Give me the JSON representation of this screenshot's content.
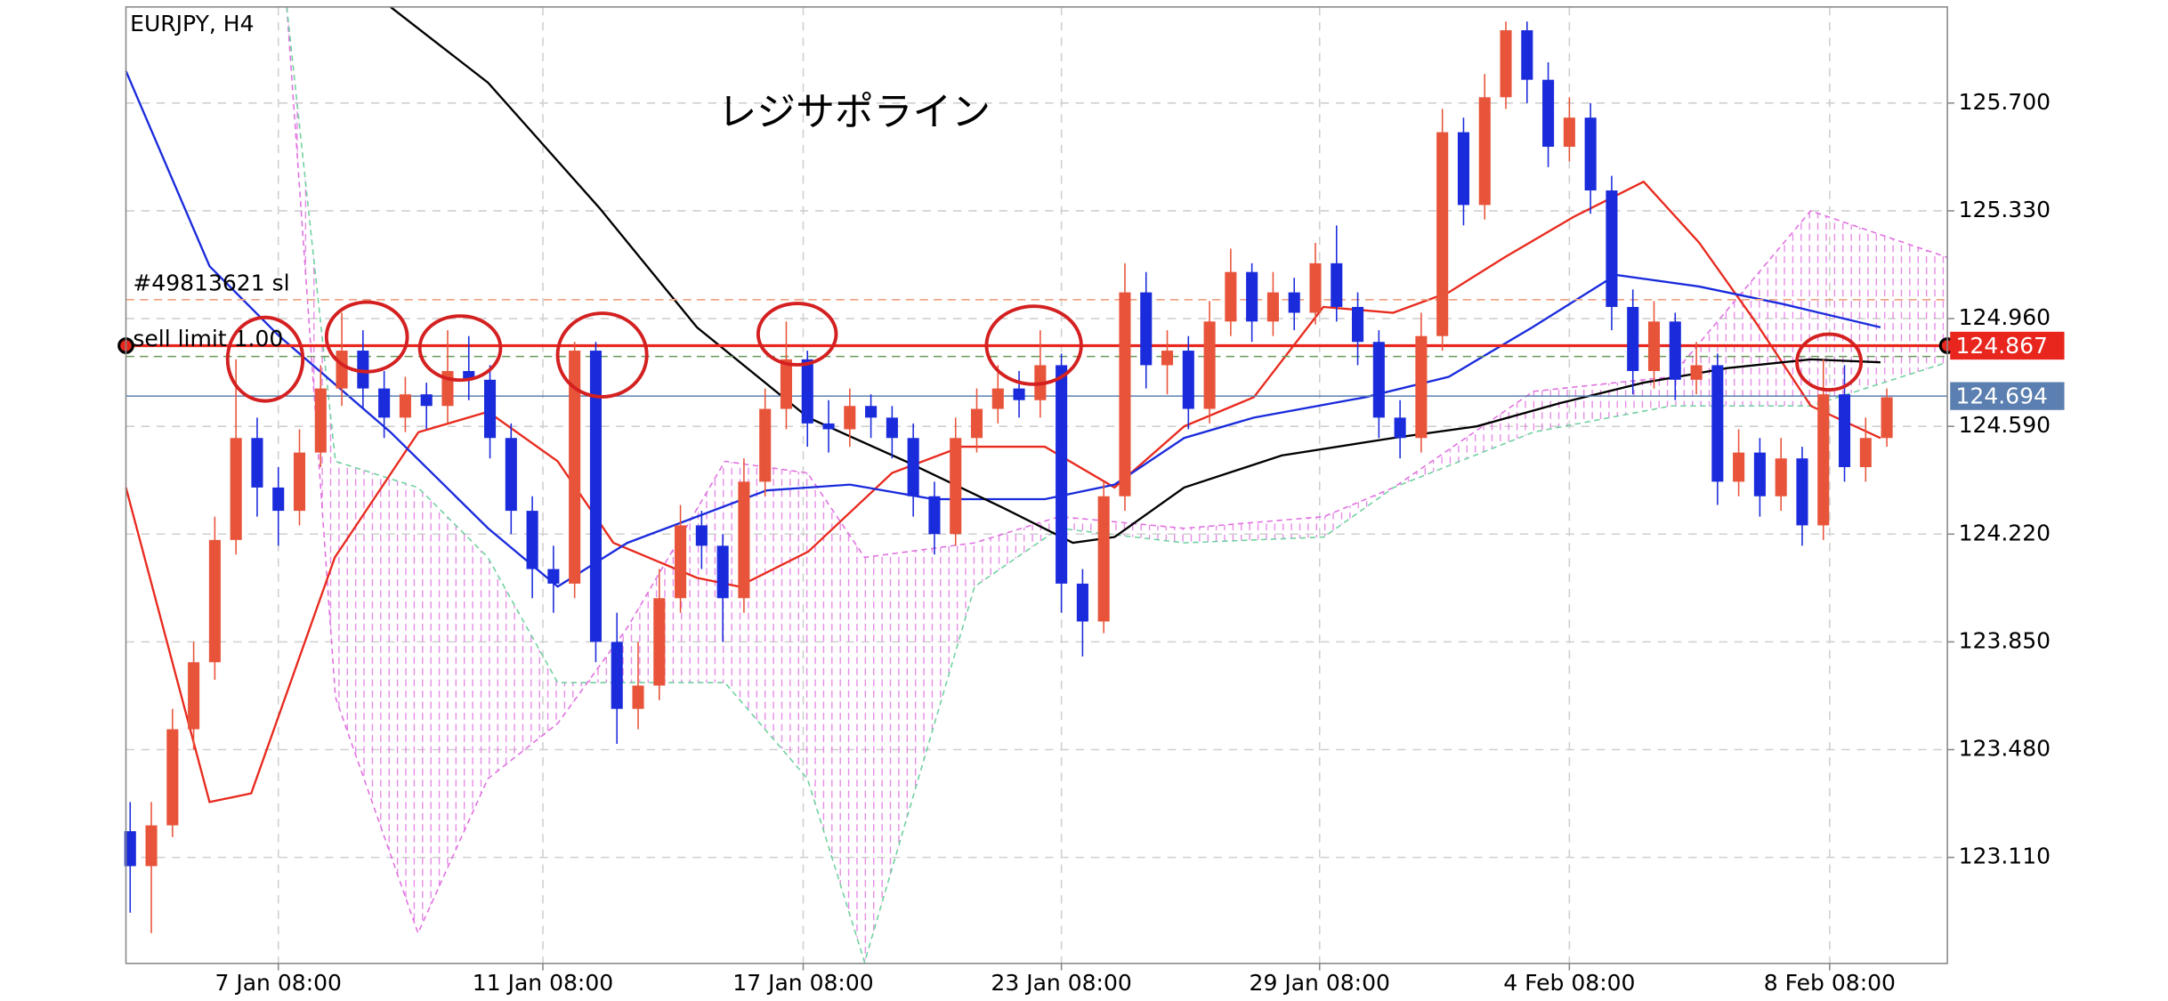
{
  "chart_data": {
    "type": "candlestick",
    "title": "EURJPY, H4",
    "annotation": "レジサポライン",
    "up_color": "#e8543a",
    "down_color": "#1a2bdc",
    "grid": true,
    "xlim": [
      -0.2,
      85.86
    ],
    "ylim": [
      122.746,
      126.03
    ],
    "yticks": [
      {
        "value": 123.11,
        "label": "123.110"
      },
      {
        "value": 123.48,
        "label": "123.480"
      },
      {
        "value": 123.85,
        "label": "123.850"
      },
      {
        "value": 124.22,
        "label": "124.220"
      },
      {
        "value": 124.59,
        "label": "124.590"
      },
      {
        "value": 124.96,
        "label": "124.960"
      },
      {
        "value": 125.33,
        "label": "125.330"
      },
      {
        "value": 125.7,
        "label": "125.700"
      }
    ],
    "xticks": [
      {
        "value": 7,
        "label": "7 Jan 08:00"
      },
      {
        "value": 19.5,
        "label": "11 Jan 08:00"
      },
      {
        "value": 31.8,
        "label": "17 Jan 08:00"
      },
      {
        "value": 44,
        "label": "23 Jan 08:00"
      },
      {
        "value": 56.2,
        "label": "29 Jan 08:00"
      },
      {
        "value": 68,
        "label": "4 Feb 08:00"
      },
      {
        "value": 80.3,
        "label": "8 Feb 08:00"
      }
    ],
    "candles": {
      "open": [
        123.2,
        123.08,
        123.22,
        123.55,
        123.78,
        124.2,
        124.55,
        124.38,
        124.3,
        124.5,
        124.72,
        124.85,
        124.72,
        124.62,
        124.7,
        124.66,
        124.78,
        124.75,
        124.55,
        124.3,
        124.1,
        124.05,
        124.85,
        123.85,
        123.62,
        123.7,
        124.0,
        124.25,
        124.18,
        124.0,
        124.4,
        124.65,
        124.82,
        124.6,
        124.58,
        124.66,
        124.62,
        124.55,
        124.35,
        124.22,
        124.55,
        124.65,
        124.72,
        124.68,
        124.8,
        124.05,
        123.92,
        124.35,
        125.05,
        124.8,
        124.85,
        124.65,
        124.95,
        125.12,
        124.95,
        125.05,
        124.98,
        125.15,
        125.0,
        124.88,
        124.62,
        124.55,
        124.9,
        125.6,
        125.35,
        125.72,
        125.95,
        125.78,
        125.55,
        125.65,
        125.4,
        125.0,
        124.78,
        124.95,
        124.75,
        124.8,
        124.4,
        124.5,
        124.35,
        124.48,
        124.25,
        124.7,
        124.45,
        124.55
      ],
      "high": [
        123.3,
        123.3,
        123.62,
        123.85,
        124.28,
        124.82,
        124.62,
        124.45,
        124.58,
        124.8,
        124.98,
        124.92,
        124.78,
        124.76,
        124.74,
        124.92,
        124.9,
        124.8,
        124.6,
        124.35,
        124.18,
        124.88,
        124.88,
        123.95,
        123.85,
        124.1,
        124.32,
        124.3,
        124.22,
        124.48,
        124.72,
        124.95,
        124.85,
        124.68,
        124.72,
        124.7,
        124.66,
        124.6,
        124.4,
        124.62,
        124.72,
        124.8,
        124.78,
        124.92,
        124.84,
        124.1,
        124.4,
        125.15,
        125.12,
        124.92,
        124.9,
        125.02,
        125.2,
        125.15,
        125.12,
        125.1,
        125.22,
        125.28,
        125.05,
        124.92,
        124.68,
        124.98,
        125.68,
        125.65,
        125.8,
        125.98,
        125.98,
        125.84,
        125.72,
        125.7,
        125.45,
        125.06,
        125.02,
        124.98,
        124.88,
        124.84,
        124.58,
        124.55,
        124.55,
        124.52,
        124.82,
        124.8,
        124.62,
        124.72
      ],
      "low": [
        122.92,
        122.85,
        123.18,
        123.48,
        123.72,
        124.15,
        124.28,
        124.18,
        124.25,
        124.45,
        124.66,
        124.65,
        124.55,
        124.57,
        124.58,
        124.6,
        124.68,
        124.48,
        124.22,
        124.0,
        123.95,
        124.0,
        123.78,
        123.5,
        123.55,
        123.65,
        123.95,
        124.1,
        123.85,
        123.95,
        124.35,
        124.58,
        124.52,
        124.5,
        124.52,
        124.55,
        124.48,
        124.28,
        124.15,
        124.18,
        124.5,
        124.6,
        124.62,
        124.62,
        123.95,
        123.8,
        123.88,
        124.3,
        124.72,
        124.7,
        124.58,
        124.6,
        124.9,
        124.88,
        124.9,
        124.92,
        124.94,
        124.95,
        124.8,
        124.55,
        124.48,
        124.5,
        124.85,
        125.28,
        125.3,
        125.68,
        125.7,
        125.48,
        125.5,
        125.32,
        124.92,
        124.7,
        124.72,
        124.68,
        124.7,
        124.32,
        124.35,
        124.28,
        124.3,
        124.18,
        124.2,
        124.4,
        124.4,
        124.52
      ],
      "close": [
        123.08,
        123.22,
        123.55,
        123.78,
        124.2,
        124.55,
        124.38,
        124.3,
        124.5,
        124.72,
        124.85,
        124.72,
        124.62,
        124.7,
        124.66,
        124.78,
        124.75,
        124.55,
        124.3,
        124.1,
        124.05,
        124.85,
        123.85,
        123.62,
        123.7,
        124.0,
        124.25,
        124.18,
        124.0,
        124.4,
        124.65,
        124.82,
        124.6,
        124.58,
        124.66,
        124.62,
        124.55,
        124.35,
        124.22,
        124.55,
        124.65,
        124.72,
        124.68,
        124.8,
        124.05,
        123.92,
        124.35,
        125.05,
        124.8,
        124.85,
        124.65,
        124.95,
        125.12,
        124.95,
        125.05,
        124.98,
        125.15,
        125.0,
        124.88,
        124.62,
        124.55,
        124.9,
        125.6,
        125.35,
        125.72,
        125.95,
        125.78,
        125.55,
        125.65,
        125.4,
        125.0,
        124.78,
        124.95,
        124.75,
        124.8,
        124.4,
        124.5,
        124.35,
        124.48,
        124.25,
        124.7,
        124.45,
        124.55,
        124.69
      ]
    },
    "cloud": {
      "x": [
        7.4,
        9.7,
        13.6,
        16.9,
        20.2,
        23.5,
        28.1,
        32.0,
        34.7,
        39.9,
        43.9,
        49.8,
        56.4,
        59.7,
        66.3,
        72.8,
        79.4,
        85.86
      ],
      "span_a": [
        126.03,
        123.66,
        122.85,
        123.38,
        123.57,
        123.9,
        124.47,
        124.43,
        124.14,
        124.19,
        124.28,
        124.24,
        124.28,
        124.38,
        124.71,
        124.76,
        125.33,
        125.17
      ],
      "span_b": [
        126.03,
        124.47,
        124.38,
        124.14,
        123.71,
        123.71,
        123.71,
        123.38,
        122.75,
        124.04,
        124.24,
        124.19,
        124.21,
        124.38,
        124.57,
        124.66,
        124.66,
        124.81
      ],
      "color_a": "#e070e0",
      "color_b": "#70d0a0"
    },
    "lines": [
      {
        "color": "#e82a1e",
        "x": [
          -0.2,
          3.75,
          5.72,
          9.67,
          13.62,
          16.91,
          20.2,
          22.83,
          26.78,
          28.75,
          32.04,
          36.0,
          39.28,
          43.22,
          46.51,
          49.8,
          53.09,
          56.38,
          59.67,
          62.3,
          64.93,
          68.22,
          71.51,
          74.14,
          76.78,
          79.41,
          82.7
        ],
        "values": [
          124.38,
          123.3,
          123.33,
          124.14,
          124.57,
          124.64,
          124.47,
          124.19,
          124.07,
          124.04,
          124.16,
          124.43,
          124.52,
          124.52,
          124.38,
          124.59,
          124.69,
          125.0,
          124.98,
          125.05,
          125.17,
          125.31,
          125.43,
          125.22,
          124.95,
          124.66,
          124.55
        ]
      },
      {
        "color": "#1a2bdc",
        "x": [
          -0.2,
          3.75,
          7.04,
          12.3,
          16.91,
          20.2,
          23.49,
          26.78,
          30.07,
          34.01,
          37.96,
          43.22,
          46.51,
          49.8,
          53.09,
          58.36,
          62.3,
          66.25,
          70.2,
          74.14,
          78.09,
          82.7
        ],
        "values": [
          125.81,
          125.14,
          124.9,
          124.57,
          124.24,
          124.04,
          124.19,
          124.28,
          124.37,
          124.39,
          124.34,
          124.34,
          124.39,
          124.55,
          124.62,
          124.69,
          124.76,
          124.93,
          125.11,
          125.07,
          125.01,
          124.93
        ]
      },
      {
        "color": "#000000",
        "x": [
          12.3,
          16.91,
          22.17,
          26.78,
          32.04,
          36.64,
          41.25,
          44.54,
          46.51,
          49.8,
          54.41,
          59.67,
          63.62,
          67.57,
          71.51,
          75.46,
          79.41,
          82.7
        ],
        "values": [
          126.03,
          125.77,
          125.34,
          124.93,
          124.62,
          124.47,
          124.31,
          124.19,
          124.21,
          124.38,
          124.49,
          124.55,
          124.59,
          124.67,
          124.74,
          124.79,
          124.82,
          124.81
        ]
      }
    ],
    "levels": [
      {
        "value": 125.025,
        "color": "#f0a080",
        "style": "dashed",
        "text": "#49813621 sl"
      },
      {
        "value": 124.83,
        "color": "#6a9a5a",
        "style": "dashed"
      },
      {
        "value": 124.867,
        "color": "#e8261e",
        "style": "solid",
        "text": "sell limit 1.00",
        "box": true
      },
      {
        "value": 124.694,
        "color": "#5a7fb0",
        "style": "solid",
        "box": true
      }
    ]
  }
}
